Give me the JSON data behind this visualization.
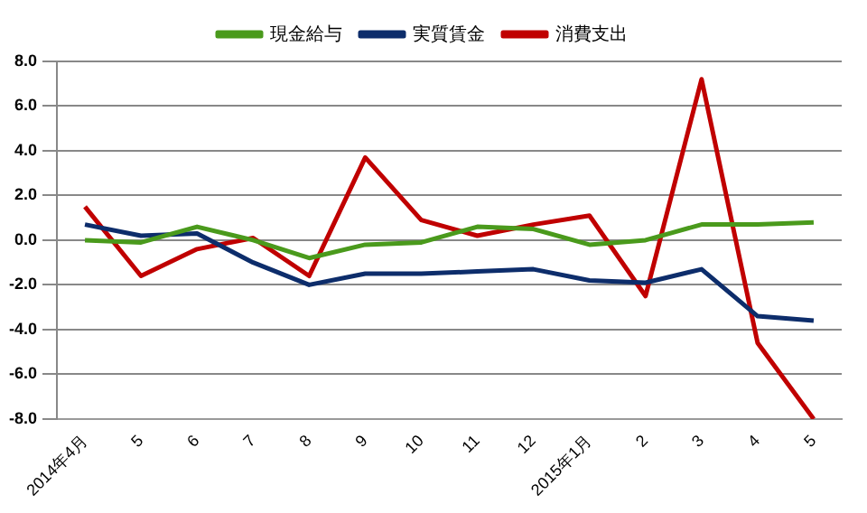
{
  "chart_data": {
    "type": "line",
    "categories": [
      "2014年4月",
      "5",
      "6",
      "7",
      "8",
      "9",
      "10",
      "11",
      "12",
      "2015年1月",
      "2",
      "3",
      "4",
      "5"
    ],
    "series": [
      {
        "name": "現金給与",
        "color": "#4a9a1c",
        "values": [
          0.0,
          -0.1,
          0.6,
          0.0,
          -0.8,
          -0.2,
          -0.1,
          0.6,
          0.5,
          -0.2,
          0.0,
          0.7,
          0.7,
          0.8
        ]
      },
      {
        "name": "実質賃金",
        "color": "#0d2d6b",
        "values": [
          0.7,
          0.2,
          0.3,
          -1.0,
          -2.0,
          -1.5,
          -1.5,
          -1.4,
          -1.3,
          -1.8,
          -1.9,
          -1.3,
          -3.4,
          -3.6
        ]
      },
      {
        "name": "消費支出",
        "color": "#c00000",
        "values": [
          1.5,
          -1.6,
          -0.4,
          0.1,
          -1.6,
          3.7,
          0.9,
          0.2,
          0.7,
          1.1,
          -2.5,
          7.2,
          -4.6,
          -8.0
        ]
      }
    ],
    "ylim": [
      -8,
      8
    ],
    "yticks": [
      {
        "value": -8,
        "label": "-8.0"
      },
      {
        "value": -6,
        "label": "-6.0"
      },
      {
        "value": -4,
        "label": "-4.0"
      },
      {
        "value": -2,
        "label": "-2.0"
      },
      {
        "value": 0,
        "label": "0.0"
      },
      {
        "value": 2,
        "label": "2.0"
      },
      {
        "value": 4,
        "label": "4.0"
      },
      {
        "value": 6,
        "label": "6.0"
      },
      {
        "value": 8,
        "label": "8.0"
      }
    ],
    "grid": "y",
    "legend": "top",
    "marker": "none",
    "line_style": "solid"
  }
}
